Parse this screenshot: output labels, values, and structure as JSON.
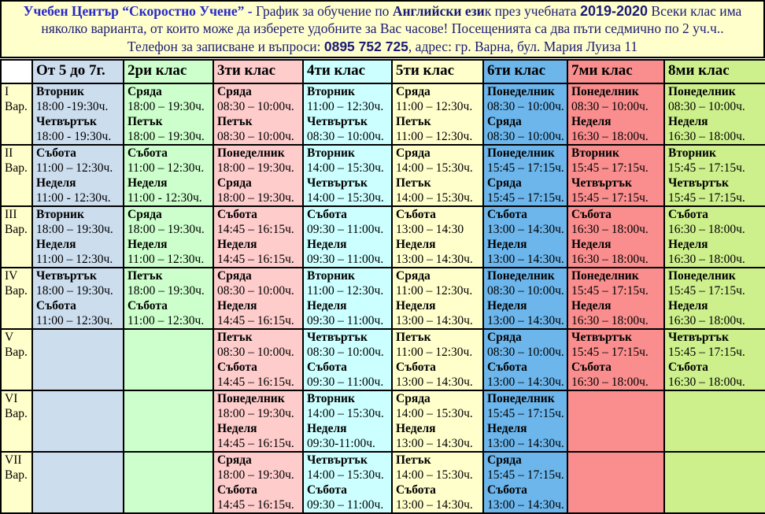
{
  "banner": {
    "intro_segments": [
      {
        "t": "Учебен Център “Скоростно Учене”",
        "style": "title",
        "name": "center-title"
      },
      {
        "t": " - ",
        "style": "title",
        "name": "title-dash"
      },
      {
        "t": "График за обучение по ",
        "style": "normal",
        "name": "intro-text"
      },
      {
        "t": "Английски ези",
        "style": "bold",
        "name": "subject-bold"
      },
      {
        "t": "к през учебната ",
        "style": "normal",
        "name": "intro-text"
      },
      {
        "t": "2019-2020",
        "style": "year",
        "name": "school-year"
      },
      {
        "t": " Всеки клас има няколко варианта, от които може да изберете удобните за Вас часове! Посещенията са два пъти седмично по 2 уч.ч..",
        "style": "normal",
        "name": "intro-text"
      }
    ],
    "contact_segments": [
      {
        "t": "Телефон за записване и въпроси: ",
        "style": "normal",
        "name": "contact-text"
      },
      {
        "t": "0895 752 725",
        "style": "phone",
        "name": "phone-number"
      },
      {
        "t": ", адрес: гр. Варна, бул. Мария Луиза 11",
        "style": "normal",
        "name": "address-text"
      }
    ]
  },
  "colors": {
    "banner_bg": "#FFFFCC",
    "title_blue": "#2929C8",
    "text_navy": "#1B1B75",
    "grid_border": "#000000"
  },
  "table": {
    "variant_word": "Вар.",
    "columns": [
      {
        "label": "",
        "color": "#FFFFFF"
      },
      {
        "label": "От 5 до 7г.",
        "color": "#CCDDEE"
      },
      {
        "label": "2ри клас",
        "color": "#CCFFCC"
      },
      {
        "label": "3ти клас",
        "color": "#FFCCCC"
      },
      {
        "label": "4ти клас",
        "color": "#CCFFFF"
      },
      {
        "label": "5ти клас",
        "color": "#FFFFCC"
      },
      {
        "label": "6ти клас",
        "color": "#6CB6EC"
      },
      {
        "label": "7ми клас",
        "color": "#FA8E8E"
      },
      {
        "label": "8ми клас",
        "color": "#CDF08C"
      }
    ],
    "rows": [
      {
        "variant": "I",
        "cells": [
          [
            {
              "day": "Вторник",
              "time": "18:00 -19:30ч."
            },
            {
              "day": "Четвъртък",
              "time": "18:00 - 19:30ч."
            }
          ],
          [
            {
              "day": "Сряда",
              "time": "18:00 – 19:30ч."
            },
            {
              "day": "Петък",
              "time": "18:00 – 19:30ч."
            }
          ],
          [
            {
              "day": "Сряда",
              "time": "08:30 – 10:00ч."
            },
            {
              "day": "Петък",
              "time": "08:30 – 10:00ч."
            }
          ],
          [
            {
              "day": "Вторник",
              "time": "11:00 – 12:30ч."
            },
            {
              "day": "Четвъртък",
              "time": "08:30 – 10:00ч."
            }
          ],
          [
            {
              "day": "Сряда",
              "time": "11:00 – 12:30ч."
            },
            {
              "day": "Петък",
              "time": "11:00 – 12:30ч."
            }
          ],
          [
            {
              "day": "Понеделник",
              "time": "08:30 – 10:00ч."
            },
            {
              "day": "Сряда",
              "time": "08:30 – 10:00ч."
            }
          ],
          [
            {
              "day": "Понеделник",
              "time": "08:30 – 10:00ч."
            },
            {
              "day": "Неделя",
              "time": "16:30 – 18:00ч."
            }
          ],
          [
            {
              "day": "Понеделник",
              "time": "08:30 – 10:00ч."
            },
            {
              "day": "Неделя",
              "time": "16:30 – 18:00ч."
            }
          ]
        ]
      },
      {
        "variant": "II",
        "cells": [
          [
            {
              "day": "Събота",
              "time": "11:00 – 12:30ч."
            },
            {
              "day": "Неделя",
              "time": "11:00 - 12:30ч."
            }
          ],
          [
            {
              "day": "Събота",
              "time": "11:00 – 12:30ч."
            },
            {
              "day": "Неделя",
              "time": "11:00 - 12:30ч."
            }
          ],
          [
            {
              "day": "Понеделник",
              "time": "18:00 – 19:30ч."
            },
            {
              "day": "Сряда",
              "time": "18:00 – 19:30ч."
            }
          ],
          [
            {
              "day": "Вторник",
              "time": "14:00 – 15:30ч."
            },
            {
              "day": "Четвъртък",
              "time": "14:00 – 15:30ч."
            }
          ],
          [
            {
              "day": "Сряда",
              "time": "14:00 – 15:30ч."
            },
            {
              "day": "Петък",
              "time": "14:00 – 15:30ч."
            }
          ],
          [
            {
              "day": "Понеделник",
              "time": "15:45 – 17:15ч."
            },
            {
              "day": "Сряда",
              "time": "15:45 – 17:15ч."
            }
          ],
          [
            {
              "day": "Вторник",
              "time": "15:45 – 17:15ч."
            },
            {
              "day": "Четвъртък",
              "time": "15:45 – 17:15ч."
            }
          ],
          [
            {
              "day": "Вторник",
              "time": "15:45 – 17:15ч."
            },
            {
              "day": "Четвъртък",
              "time": "15:45 – 17:15ч."
            }
          ]
        ]
      },
      {
        "variant": "III",
        "cells": [
          [
            {
              "day": "Вторник",
              "time": "18:00 – 19:30ч."
            },
            {
              "day": "Неделя",
              "time": "11:00 – 12:30ч."
            }
          ],
          [
            {
              "day": "Сряда",
              "time": "18:00 – 19:30ч."
            },
            {
              "day": "Неделя",
              "time": "11:00 – 12:30ч."
            }
          ],
          [
            {
              "day": "Събота",
              "time": "14:45 – 16:15ч."
            },
            {
              "day": "Неделя",
              "time": "14:45 – 16:15ч."
            }
          ],
          [
            {
              "day": "Събота",
              "time": "09:30 – 11:00ч."
            },
            {
              "day": "Неделя",
              "time": "09:30 – 11:00ч."
            }
          ],
          [
            {
              "day": "Събота",
              "time": "13:00 – 14:30"
            },
            {
              "day": "Неделя",
              "time": "13:00 – 14:30ч."
            }
          ],
          [
            {
              "day": "Събота",
              "time": "13:00 – 14:30ч."
            },
            {
              "day": "Неделя",
              "time": "13:00 – 14:30ч."
            }
          ],
          [
            {
              "day": "Събота",
              "time": "16:30 – 18:00ч."
            },
            {
              "day": "Неделя",
              "time": "16:30 – 18:00ч."
            }
          ],
          [
            {
              "day": "Събота",
              "time": "16:30 – 18:00ч."
            },
            {
              "day": "Неделя",
              "time": "16:30 – 18:00ч."
            }
          ]
        ]
      },
      {
        "variant": "IV",
        "cells": [
          [
            {
              "day": "Четвъртък",
              "time": "18:00 – 19:30ч."
            },
            {
              "day": "Събота",
              "time": "11:00 – 12:30ч."
            }
          ],
          [
            {
              "day": "Петък",
              "time": "18:00 – 19:30ч."
            },
            {
              "day": "Събота",
              "time": "11:00 – 12:30ч."
            }
          ],
          [
            {
              "day": "Сряда",
              "time": "08:30 – 10:00ч."
            },
            {
              "day": "Неделя",
              "time": "14:45 – 16:15ч."
            }
          ],
          [
            {
              "day": "Вторник",
              "time": "11:00 – 12:30ч."
            },
            {
              "day": "Неделя",
              "time": "09:30 – 11:00ч."
            }
          ],
          [
            {
              "day": "Сряда",
              "time": "11:00 – 12:30ч."
            },
            {
              "day": "Неделя",
              "time": "13:00 – 14:30ч."
            }
          ],
          [
            {
              "day": "Понеделник",
              "time": "08:30 – 10:00ч."
            },
            {
              "day": "Неделя",
              "time": "13:00 – 14:30ч."
            }
          ],
          [
            {
              "day": "Понеделник",
              "time": "15:45 – 17:15ч."
            },
            {
              "day": "Неделя",
              "time": "16:30 – 18:00ч."
            }
          ],
          [
            {
              "day": "Понеделник",
              "time": "15:45 – 17:15ч."
            },
            {
              "day": "Неделя",
              "time": "16:30 – 18:00ч."
            }
          ]
        ]
      },
      {
        "variant": "V",
        "cells": [
          [],
          [],
          [
            {
              "day": "Петък",
              "time": "08:30 – 10:00ч."
            },
            {
              "day": "Събота",
              "time": "14:45 – 16:15ч."
            }
          ],
          [
            {
              "day": "Четвъртък",
              "time": "08:30 – 10:00ч."
            },
            {
              "day": "Събота",
              "time": "09:30 – 11:00ч."
            }
          ],
          [
            {
              "day": "Петък",
              "time": "11:00 – 12:30ч."
            },
            {
              "day": "Събота",
              "time": "13:00 – 14:30ч."
            }
          ],
          [
            {
              "day": "Сряда",
              "time": "08:30 – 10:00ч."
            },
            {
              "day": "Събота",
              "time": "13:00 – 14:30ч."
            }
          ],
          [
            {
              "day": "Четвъртък",
              "time": "15:45 – 17:15ч."
            },
            {
              "day": "Събота",
              "time": "16:30 – 18:00ч."
            }
          ],
          [
            {
              "day": "Четвъртък",
              "time": "15:45 – 17:15ч."
            },
            {
              "day": "Събота",
              "time": "16:30 – 18:00ч."
            }
          ]
        ]
      },
      {
        "variant": "VI",
        "cells": [
          [],
          [],
          [
            {
              "day": "Понеделник",
              "time": "18:00 – 19:30ч."
            },
            {
              "day": "Неделя",
              "time": "14:45 – 16:15ч."
            }
          ],
          [
            {
              "day": "Вторник",
              "time": "14:00 – 15:30ч."
            },
            {
              "day": "Неделя",
              "time": "09:30-11:00ч."
            }
          ],
          [
            {
              "day": "Сряда",
              "time": "14:00 – 15:30ч."
            },
            {
              "day": "Неделя",
              "time": "13:00 – 14:30ч."
            }
          ],
          [
            {
              "day": "Понеделник",
              "time": "15:45 – 17:15ч."
            },
            {
              "day": "Неделя",
              "time": "13:00 – 14:30ч."
            }
          ],
          [],
          []
        ]
      },
      {
        "variant": "VII",
        "cells": [
          [],
          [],
          [
            {
              "day": "Сряда",
              "time": "18:00 – 19:30ч."
            },
            {
              "day": "Събота",
              "time": "14:45 – 16:15ч."
            }
          ],
          [
            {
              "day": "Четвъртък",
              "time": "14:00 – 15:30ч."
            },
            {
              "day": "Събота",
              "time": "09:30 – 11:00ч."
            }
          ],
          [
            {
              "day": "Петък",
              "time": "14:00 – 15:30ч."
            },
            {
              "day": "Събота",
              "time": "13:00 – 14:30ч."
            }
          ],
          [
            {
              "day": "Сряда",
              "time": "15:45 – 17:15ч."
            },
            {
              "day": "Събота",
              "time": "13:00 – 14:30ч."
            }
          ],
          [],
          []
        ]
      }
    ]
  }
}
